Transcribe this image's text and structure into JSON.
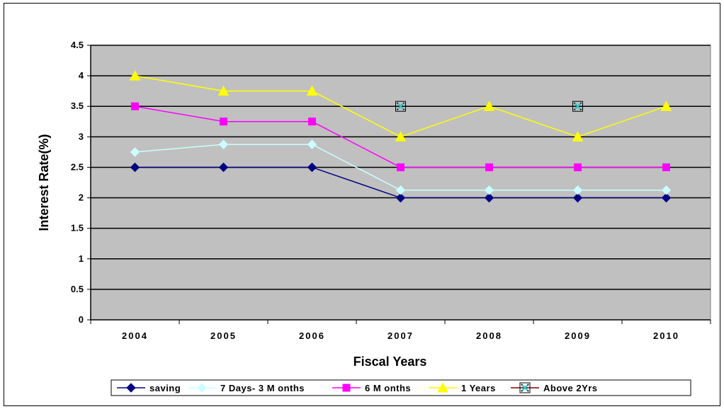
{
  "chart_data": {
    "type": "line",
    "xlabel": "Fiscal Years",
    "ylabel": "Interest Rate(%)",
    "categories": [
      "2004",
      "2005",
      "2006",
      "2007",
      "2008",
      "2009",
      "2010"
    ],
    "ylim": [
      0,
      4.5
    ],
    "yticks": [
      "0",
      "0.5",
      "1",
      "1.5",
      "2",
      "2.5",
      "3",
      "3.5",
      "4",
      "4.5"
    ],
    "grid": true,
    "plot_background": "#c0c0c0",
    "legend_position": "bottom",
    "series": [
      {
        "name": "saving",
        "color": "#000080",
        "marker": "diamond",
        "values": [
          2.5,
          2.5,
          2.5,
          2.0,
          2.0,
          2.0,
          2.0
        ]
      },
      {
        "name": "7 Days- 3 M onths",
        "color": "#ccffff",
        "marker": "diamond",
        "values": [
          2.75,
          2.875,
          2.875,
          2.125,
          2.125,
          2.125,
          2.125
        ]
      },
      {
        "name": "6 M onths",
        "color": "#ff00ff",
        "marker": "square",
        "values": [
          3.5,
          3.25,
          3.25,
          2.5,
          2.5,
          2.5,
          2.5
        ]
      },
      {
        "name": "1 Years",
        "color": "#ffff00",
        "marker": "triangle",
        "values": [
          4.0,
          3.75,
          3.75,
          3.0,
          3.5,
          3.0,
          3.5
        ]
      },
      {
        "name": "Above 2Yrs",
        "color": "#800000",
        "marker": "x",
        "values": [
          null,
          null,
          null,
          3.5,
          null,
          3.5,
          null
        ]
      }
    ]
  }
}
